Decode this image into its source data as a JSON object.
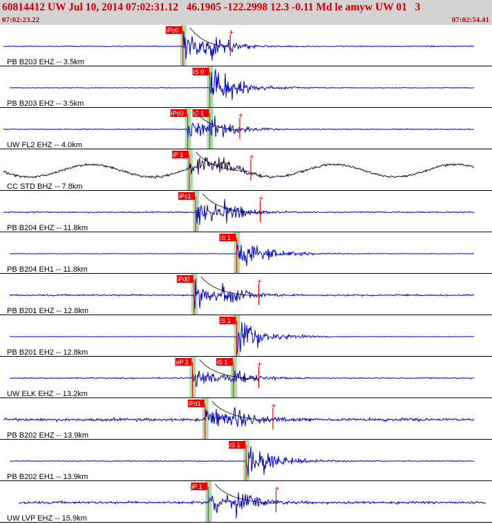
{
  "header": {
    "title": "60814412 UW Jul 10, 2014 07:02:31.12   46.1905 -122.2998 12.3 -0.11 Md le amyw UW 01   3",
    "start_time": "07:02:23.22",
    "end_time": "07:02:54.41"
  },
  "colors": {
    "header_bg": "#d3d3d3",
    "header_text": "#cc0000",
    "trace": "#0000cc",
    "trace_bh": "#1a0040",
    "pick_box": "#ee0000",
    "pick_text": "#ffffff",
    "pick_band": "#a8dca8",
    "separator": "#000000",
    "label": "#000000",
    "amp_marker": "#ee0000"
  },
  "chart_data": {
    "type": "line",
    "time_range": [
      "07:02:23.22",
      "07:02:54.41"
    ],
    "duration_s": 31.19,
    "channels": [
      {
        "label": "PB B203 EHZ -- 3.5km",
        "p_pick": {
          "label": "iPc0",
          "t": 11.6
        },
        "s_pick": null,
        "amp_t": 14.6,
        "noise": 0.05
      },
      {
        "label": "PB B203 EH2 -- 3.5km",
        "p_pick": null,
        "s_pick": {
          "label": "iS 0",
          "t": 13.3
        },
        "amp_t": null,
        "noise": 0.04
      },
      {
        "label": "UW FL2 EHZ -- 4.0km",
        "p_pick": {
          "label": "iPd0",
          "t": 11.9
        },
        "s_pick": {
          "label": "iS 1",
          "t": 13.3
        },
        "amp_t": 15.2,
        "noise": 0.05
      },
      {
        "label": "CC STD BHZ -- 7.8km",
        "p_pick": {
          "label": "iP 1",
          "t": 12.0
        },
        "s_pick": null,
        "amp_t": 15.9,
        "noise": 0.12,
        "long_period": true
      },
      {
        "label": "PB B204 EHZ -- 11.8km",
        "p_pick": {
          "label": "iPc1",
          "t": 12.4
        },
        "s_pick": null,
        "amp_t": 16.5,
        "noise": 0.07
      },
      {
        "label": "PB B204 EH1 -- 11.8km",
        "p_pick": null,
        "s_pick": {
          "label": "iS 1",
          "t": 15.0
        },
        "amp_t": null,
        "noise": 0.03
      },
      {
        "label": "PB B201 EHZ -- 12.8km",
        "p_pick": {
          "label": "iPd0",
          "t": 12.3
        },
        "s_pick": null,
        "amp_t": 16.4,
        "noise": 0.09
      },
      {
        "label": "PB B201 EH2 -- 12.8km",
        "p_pick": null,
        "s_pick": {
          "label": "iS 1",
          "t": 15.0
        },
        "amp_t": null,
        "noise": 0.03
      },
      {
        "label": "UW ELK EHZ -- 13.2km",
        "p_pick": {
          "label": "eP 2",
          "t": 12.2
        },
        "s_pick": {
          "label": "iS 1",
          "t": 14.8
        },
        "amp_t": 16.4,
        "noise": 0.06
      },
      {
        "label": "PB B202 EHZ -- 13.9km",
        "p_pick": {
          "label": "iPd1",
          "t": 13.0
        },
        "s_pick": null,
        "amp_t": 17.3,
        "noise": 0.16
      },
      {
        "label": "PB B202 EH1 -- 13.9km",
        "p_pick": null,
        "s_pick": {
          "label": "iS 1",
          "t": 15.6
        },
        "amp_t": null,
        "noise": 0.05
      },
      {
        "label": "UW LVP EHZ -- 15.9km",
        "p_pick": {
          "label": "iP 1",
          "t": 13.2
        },
        "s_pick": null,
        "amp_t": 17.5,
        "noise": 0.14
      }
    ]
  }
}
